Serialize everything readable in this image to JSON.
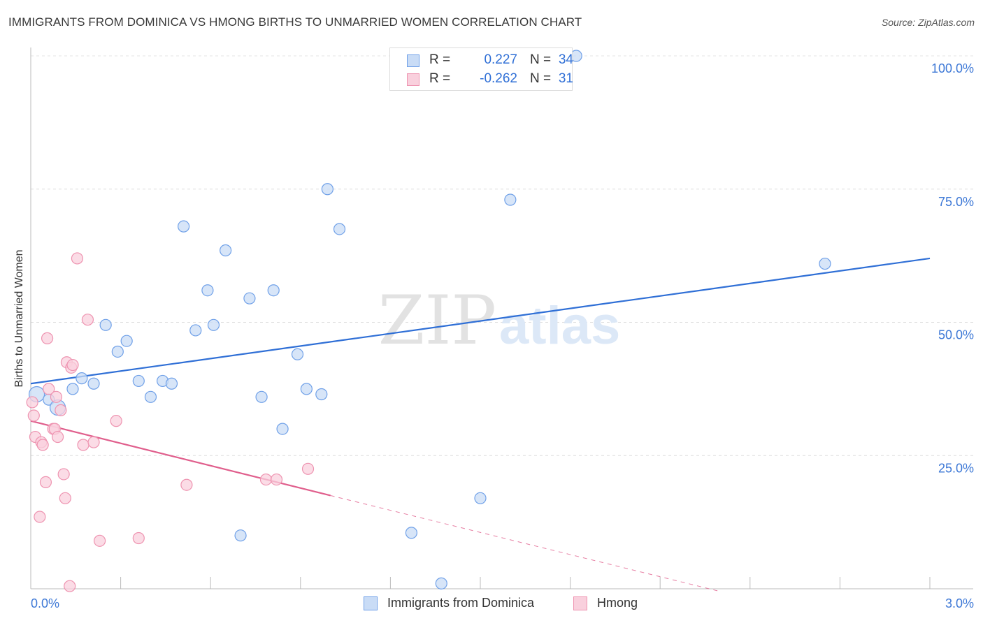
{
  "chart_data": {
    "type": "scatter",
    "title": "IMMIGRANTS FROM DOMINICA VS HMONG BIRTHS TO UNMARRIED WOMEN CORRELATION CHART",
    "source": "Source: ZipAtlas.com",
    "xlabel": "",
    "ylabel": "Births to Unmarried Women",
    "xlim": [
      0,
      3.0
    ],
    "ylim": [
      0,
      100
    ],
    "x_tick_labels": [
      "0.0%",
      "3.0%"
    ],
    "y_ticks": [
      25,
      50,
      75,
      100
    ],
    "y_tick_labels": [
      "25.0%",
      "50.0%",
      "75.0%",
      "100.0%"
    ],
    "grid": true,
    "legend_position": "top-center",
    "watermark": "ZIPatlas",
    "series": [
      {
        "name": "Immigrants from Dominica",
        "color": "#6fa0e8",
        "fill": "#c9dcf6",
        "line_color": "#2f6fd6",
        "R": "0.227",
        "N": "34",
        "trend": {
          "x": [
            0,
            3.0
          ],
          "y": [
            38.5,
            62
          ]
        },
        "points": [
          {
            "x": 0.02,
            "y": 36.5
          },
          {
            "x": 0.06,
            "y": 35.5
          },
          {
            "x": 0.09,
            "y": 34.0
          },
          {
            "x": 0.14,
            "y": 37.5
          },
          {
            "x": 0.17,
            "y": 39.5
          },
          {
            "x": 0.21,
            "y": 38.5
          },
          {
            "x": 0.25,
            "y": 49.5
          },
          {
            "x": 0.29,
            "y": 44.5
          },
          {
            "x": 0.32,
            "y": 46.5
          },
          {
            "x": 0.36,
            "y": 39.0
          },
          {
            "x": 0.4,
            "y": 36.0
          },
          {
            "x": 0.44,
            "y": 39.0
          },
          {
            "x": 0.47,
            "y": 38.5
          },
          {
            "x": 0.51,
            "y": 68.0
          },
          {
            "x": 0.55,
            "y": 48.5
          },
          {
            "x": 0.59,
            "y": 56.0
          },
          {
            "x": 0.61,
            "y": 49.5
          },
          {
            "x": 0.65,
            "y": 63.5
          },
          {
            "x": 0.7,
            "y": 10.0
          },
          {
            "x": 0.73,
            "y": 54.5
          },
          {
            "x": 0.77,
            "y": 36.0
          },
          {
            "x": 0.81,
            "y": 56.0
          },
          {
            "x": 0.84,
            "y": 30.0
          },
          {
            "x": 0.89,
            "y": 44.0
          },
          {
            "x": 0.92,
            "y": 37.5
          },
          {
            "x": 0.97,
            "y": 36.5
          },
          {
            "x": 0.99,
            "y": 75.0
          },
          {
            "x": 1.03,
            "y": 67.5
          },
          {
            "x": 1.27,
            "y": 10.5
          },
          {
            "x": 1.37,
            "y": 1.0
          },
          {
            "x": 1.5,
            "y": 17.0
          },
          {
            "x": 1.6,
            "y": 73.0
          },
          {
            "x": 1.82,
            "y": 100.0
          },
          {
            "x": 2.65,
            "y": 61.0
          }
        ]
      },
      {
        "name": "Hmong",
        "color": "#ee93b0",
        "fill": "#f9d0dd",
        "line_color": "#e05e8c",
        "R": "-0.262",
        "N": "31",
        "trend": {
          "x": [
            0,
            1.0
          ],
          "y": [
            31.5,
            17.5
          ]
        },
        "trend_dashed": {
          "x": [
            1.0,
            2.3
          ],
          "y": [
            17.5,
            -0.5
          ]
        },
        "points": [
          {
            "x": 0.005,
            "y": 35.0
          },
          {
            "x": 0.01,
            "y": 32.5
          },
          {
            "x": 0.015,
            "y": 28.5
          },
          {
            "x": 0.03,
            "y": 13.5
          },
          {
            "x": 0.035,
            "y": 27.5
          },
          {
            "x": 0.04,
            "y": 27.0
          },
          {
            "x": 0.05,
            "y": 20.0
          },
          {
            "x": 0.055,
            "y": 47.0
          },
          {
            "x": 0.06,
            "y": 37.5
          },
          {
            "x": 0.075,
            "y": 30.0
          },
          {
            "x": 0.08,
            "y": 30.0
          },
          {
            "x": 0.085,
            "y": 36.0
          },
          {
            "x": 0.09,
            "y": 28.5
          },
          {
            "x": 0.1,
            "y": 33.5
          },
          {
            "x": 0.11,
            "y": 21.5
          },
          {
            "x": 0.115,
            "y": 17.0
          },
          {
            "x": 0.12,
            "y": 42.5
          },
          {
            "x": 0.13,
            "y": 0.5
          },
          {
            "x": 0.135,
            "y": 41.5
          },
          {
            "x": 0.14,
            "y": 42.0
          },
          {
            "x": 0.155,
            "y": 62.0
          },
          {
            "x": 0.175,
            "y": 27.0
          },
          {
            "x": 0.19,
            "y": 50.5
          },
          {
            "x": 0.21,
            "y": 27.5
          },
          {
            "x": 0.23,
            "y": 9.0
          },
          {
            "x": 0.285,
            "y": 31.5
          },
          {
            "x": 0.36,
            "y": 9.5
          },
          {
            "x": 0.52,
            "y": 19.5
          },
          {
            "x": 0.785,
            "y": 20.5
          },
          {
            "x": 0.82,
            "y": 20.5
          },
          {
            "x": 0.925,
            "y": 22.5
          }
        ]
      }
    ]
  },
  "legend_top": {
    "r_label": "R =",
    "n_label": "N =",
    "rows": [
      {
        "r": "0.227",
        "n": "34"
      },
      {
        "r": "-0.262",
        "n": "31"
      }
    ]
  },
  "legend_bottom": [
    {
      "label": "Immigrants from Dominica"
    },
    {
      "label": "Hmong"
    }
  ]
}
